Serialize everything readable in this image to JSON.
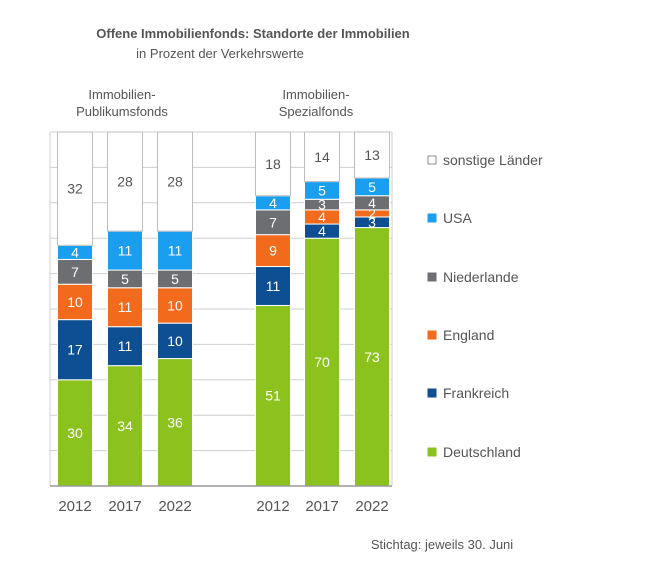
{
  "chart_data": {
    "type": "bar",
    "stacked": true,
    "title": "Offene Immobilienfonds: Standorte der Immobilien",
    "subtitle": "in Prozent der Verkehrswerte",
    "groups": [
      {
        "label_lines": [
          "Immobilien-",
          "Publikumsfonds"
        ]
      },
      {
        "label_lines": [
          "Immobilien-",
          "Spezialfonds"
        ]
      }
    ],
    "categories": [
      "2012",
      "2017",
      "2022",
      "2012",
      "2017",
      "2022"
    ],
    "group_index": [
      0,
      0,
      0,
      1,
      1,
      1
    ],
    "series": [
      {
        "name": "Deutschland",
        "color": "#8cc21e",
        "label_color": "#ffffff",
        "values": [
          30,
          34,
          36,
          51,
          70,
          73
        ]
      },
      {
        "name": "Frankreich",
        "color": "#0d4f92",
        "label_color": "#ffffff",
        "values": [
          17,
          11,
          10,
          11,
          4,
          3
        ]
      },
      {
        "name": "England",
        "color": "#f26a1b",
        "label_color": "#ffffff",
        "values": [
          10,
          11,
          10,
          9,
          4,
          2
        ]
      },
      {
        "name": "Niederlande",
        "color": "#6d6e71",
        "label_color": "#ffffff",
        "values": [
          7,
          5,
          5,
          7,
          3,
          4
        ]
      },
      {
        "name": "USA",
        "color": "#1a9ef0",
        "label_color": "#ffffff",
        "values": [
          4,
          11,
          11,
          4,
          5,
          5
        ]
      },
      {
        "name": "sonstige Länder",
        "color": "#ffffff",
        "label_color": "#555555",
        "values": [
          32,
          28,
          28,
          18,
          14,
          13
        ]
      }
    ],
    "ylim": [
      0,
      100
    ],
    "grid": true,
    "legend_position": "right",
    "footnote": "Stichtag: jeweils 30. Juni"
  }
}
